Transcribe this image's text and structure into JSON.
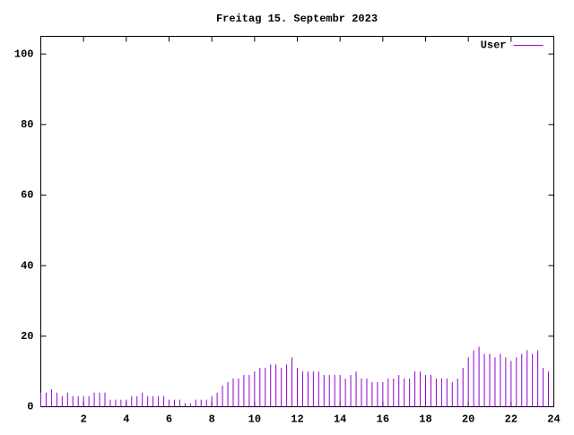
{
  "chart_data": {
    "type": "impulse",
    "title": "Freitag 15. Septembr 2023",
    "x": [
      0,
      0.25,
      0.5,
      0.75,
      1,
      1.25,
      1.5,
      1.75,
      2,
      2.25,
      2.5,
      2.75,
      3,
      3.25,
      3.5,
      3.75,
      4,
      4.25,
      4.5,
      4.75,
      5,
      5.25,
      5.5,
      5.75,
      6,
      6.25,
      6.5,
      6.75,
      7,
      7.25,
      7.5,
      7.75,
      8,
      8.25,
      8.5,
      8.75,
      9,
      9.25,
      9.5,
      9.75,
      10,
      10.25,
      10.5,
      10.75,
      11,
      11.25,
      11.5,
      11.75,
      12,
      12.25,
      12.5,
      12.75,
      13,
      13.25,
      13.5,
      13.75,
      14,
      14.25,
      14.5,
      14.75,
      15,
      15.25,
      15.5,
      15.75,
      16,
      16.25,
      16.5,
      16.75,
      17,
      17.25,
      17.5,
      17.75,
      18,
      18.25,
      18.5,
      18.75,
      19,
      19.25,
      19.5,
      19.75,
      20,
      20.25,
      20.5,
      20.75,
      21,
      21.25,
      21.5,
      21.75,
      22,
      22.25,
      22.5,
      22.75,
      23,
      23.25,
      23.5,
      23.75
    ],
    "series": [
      {
        "name": "User",
        "color": "#9400d3",
        "values": [
          4,
          4,
          5,
          4,
          3,
          4,
          3,
          3,
          3,
          3,
          4,
          4,
          4,
          2,
          2,
          2,
          2,
          3,
          3,
          4,
          3,
          3,
          3,
          3,
          2,
          2,
          2,
          1,
          1,
          2,
          2,
          2,
          3,
          4,
          6,
          7,
          8,
          8,
          9,
          9,
          10,
          11,
          11,
          12,
          12,
          11,
          12,
          14,
          11,
          10,
          10,
          10,
          10,
          9,
          9,
          9,
          9,
          8,
          9,
          10,
          8,
          8,
          7,
          7,
          7,
          8,
          8,
          9,
          8,
          8,
          10,
          10,
          9,
          9,
          8,
          8,
          8,
          7,
          8,
          11,
          14,
          16,
          17,
          15,
          15,
          14,
          15,
          14,
          13,
          14,
          15,
          16,
          15,
          16,
          11,
          10
        ]
      }
    ],
    "xlim": [
      0,
      24
    ],
    "xticks": [
      2,
      4,
      6,
      8,
      10,
      12,
      14,
      16,
      18,
      20,
      22,
      24
    ],
    "ylim": [
      0,
      105
    ],
    "yticks": [
      0,
      20,
      40,
      60,
      80,
      100
    ],
    "legend": "top-right"
  }
}
